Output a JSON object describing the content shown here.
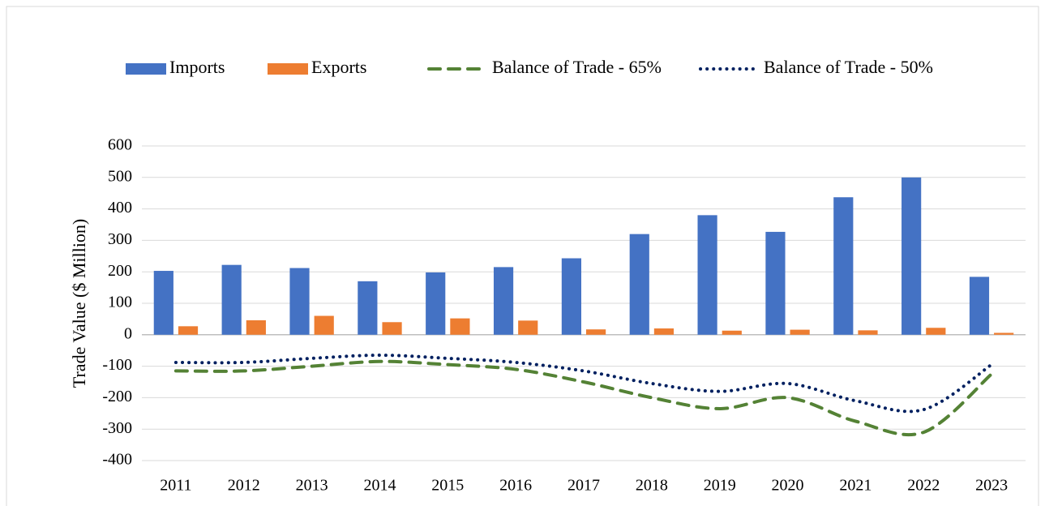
{
  "chart_data": {
    "type": "bar-line",
    "y_label": "Trade Value ($ Million)",
    "categories": [
      "2011",
      "2012",
      "2013",
      "2014",
      "2015",
      "2016",
      "2017",
      "2018",
      "2019",
      "2020",
      "2021",
      "2022",
      "2023"
    ],
    "series": [
      {
        "name": "Imports",
        "type": "bar",
        "color": "#4472c4",
        "values": [
          203,
          222,
          212,
          170,
          198,
          215,
          243,
          320,
          380,
          327,
          437,
          500,
          184
        ]
      },
      {
        "name": "Exports",
        "type": "bar",
        "color": "#ed7d31",
        "values": [
          27,
          46,
          60,
          40,
          52,
          45,
          17,
          20,
          13,
          16,
          14,
          22,
          6
        ]
      },
      {
        "name": "Balance of Trade - 65%",
        "type": "line",
        "dash": "dashed",
        "color": "#548235",
        "values": [
          -115,
          -115,
          -100,
          -85,
          -95,
          -110,
          -150,
          -200,
          -235,
          -200,
          -275,
          -310,
          -125
        ]
      },
      {
        "name": "Balance of Trade - 50%",
        "type": "line",
        "dash": "dotted",
        "color": "#002060",
        "values": [
          -88,
          -88,
          -75,
          -65,
          -75,
          -88,
          -115,
          -155,
          -180,
          -155,
          -210,
          -238,
          -95
        ]
      }
    ],
    "ylim": [
      -400,
      600
    ],
    "yticks": [
      -400,
      -300,
      -200,
      -100,
      0,
      100,
      200,
      300,
      400,
      500,
      600
    ],
    "grid": true,
    "legend": "top"
  }
}
